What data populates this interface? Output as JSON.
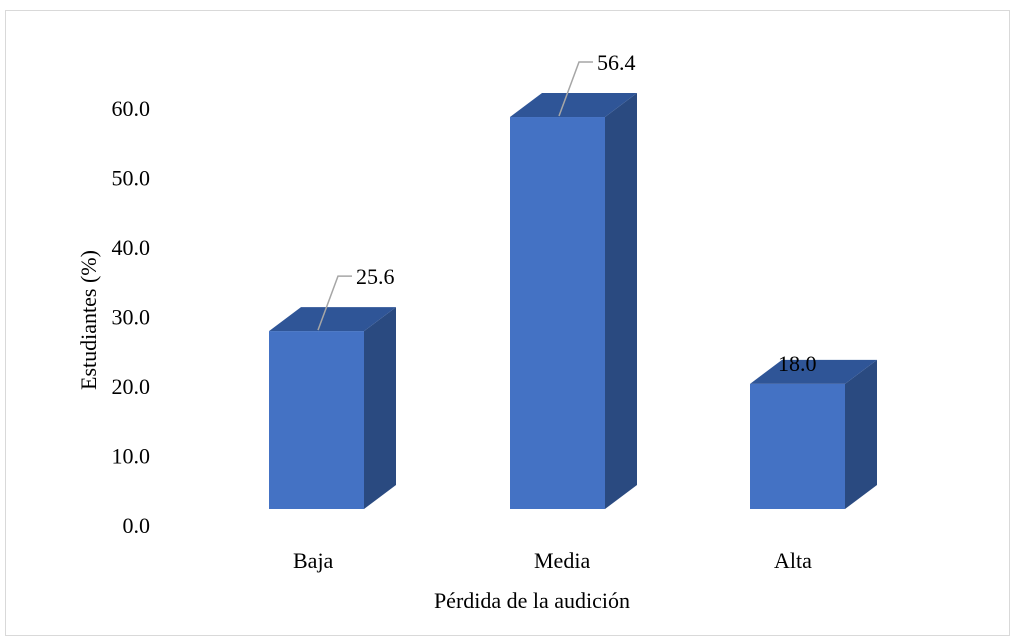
{
  "chart_data": {
    "type": "bar",
    "style": "3d-column",
    "categories": [
      "Baja",
      "Media",
      "Alta"
    ],
    "values": [
      25.6,
      56.4,
      18.0
    ],
    "value_labels": [
      "25.6",
      "56.4",
      "18.0"
    ],
    "xlabel": "Pérdida de la audición",
    "ylabel": "Estudiantes (%)",
    "ylim": [
      0,
      60
    ],
    "yticks": [
      "0.0",
      "10.0",
      "20.0",
      "30.0",
      "40.0",
      "50.0",
      "60.0"
    ],
    "ytick_values": [
      0,
      10,
      20,
      30,
      40,
      50,
      60
    ],
    "grid": false,
    "legend": "none",
    "colors": {
      "bar_front": "#4472c4",
      "bar_top": "#2f5597",
      "bar_side": "#2a4a80",
      "leader_line": "#a6a6a6",
      "frame_border": "#d9d9d9"
    }
  }
}
